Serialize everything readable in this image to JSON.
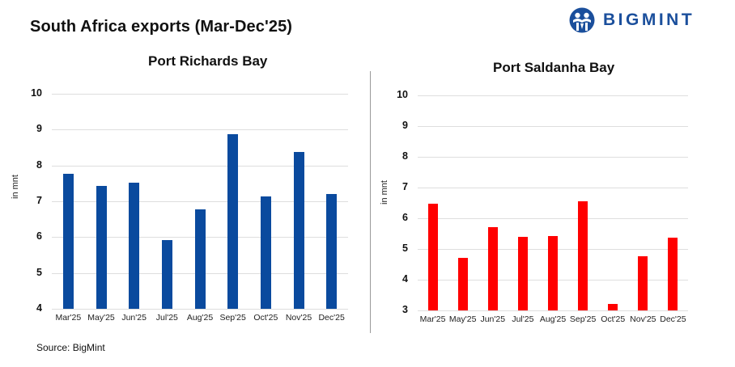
{
  "header": {
    "title": "South Africa exports (Mar-Dec'25)",
    "logo_text": "BIGMINT",
    "logo_icon": "bigmint-people-icon",
    "brand_color": "#1b4f9c"
  },
  "footer": {
    "source": "Source:  BigMint"
  },
  "chart_data": [
    {
      "type": "bar",
      "title": "Port Richards Bay",
      "xlabel": "",
      "ylabel": "in mnt",
      "ylim": [
        4,
        10
      ],
      "yticks": [
        4,
        5,
        6,
        7,
        8,
        9,
        10
      ],
      "grid": true,
      "color": "#0a4a9e",
      "categories": [
        "Mar'25",
        "May'25",
        "Jun'25",
        "Jul'25",
        "Aug'25",
        "Sep'25",
        "Oct'25",
        "Nov'25",
        "Dec'25"
      ],
      "values": [
        7.77,
        7.43,
        7.53,
        5.92,
        6.78,
        8.87,
        7.13,
        8.37,
        7.2
      ]
    },
    {
      "type": "bar",
      "title": "Port Saldanha Bay",
      "xlabel": "",
      "ylabel": "in mnt",
      "ylim": [
        3,
        10
      ],
      "yticks": [
        3,
        4,
        5,
        6,
        7,
        8,
        9,
        10
      ],
      "grid": true,
      "color": "#ff0000",
      "categories": [
        "Mar'25",
        "May'25",
        "Jun'25",
        "Jul'25",
        "Aug'25",
        "Sep'25",
        "Oct'25",
        "Nov'25",
        "Dec'25"
      ],
      "values": [
        6.47,
        4.71,
        5.71,
        5.39,
        5.42,
        6.55,
        3.21,
        4.76,
        5.37
      ]
    }
  ]
}
